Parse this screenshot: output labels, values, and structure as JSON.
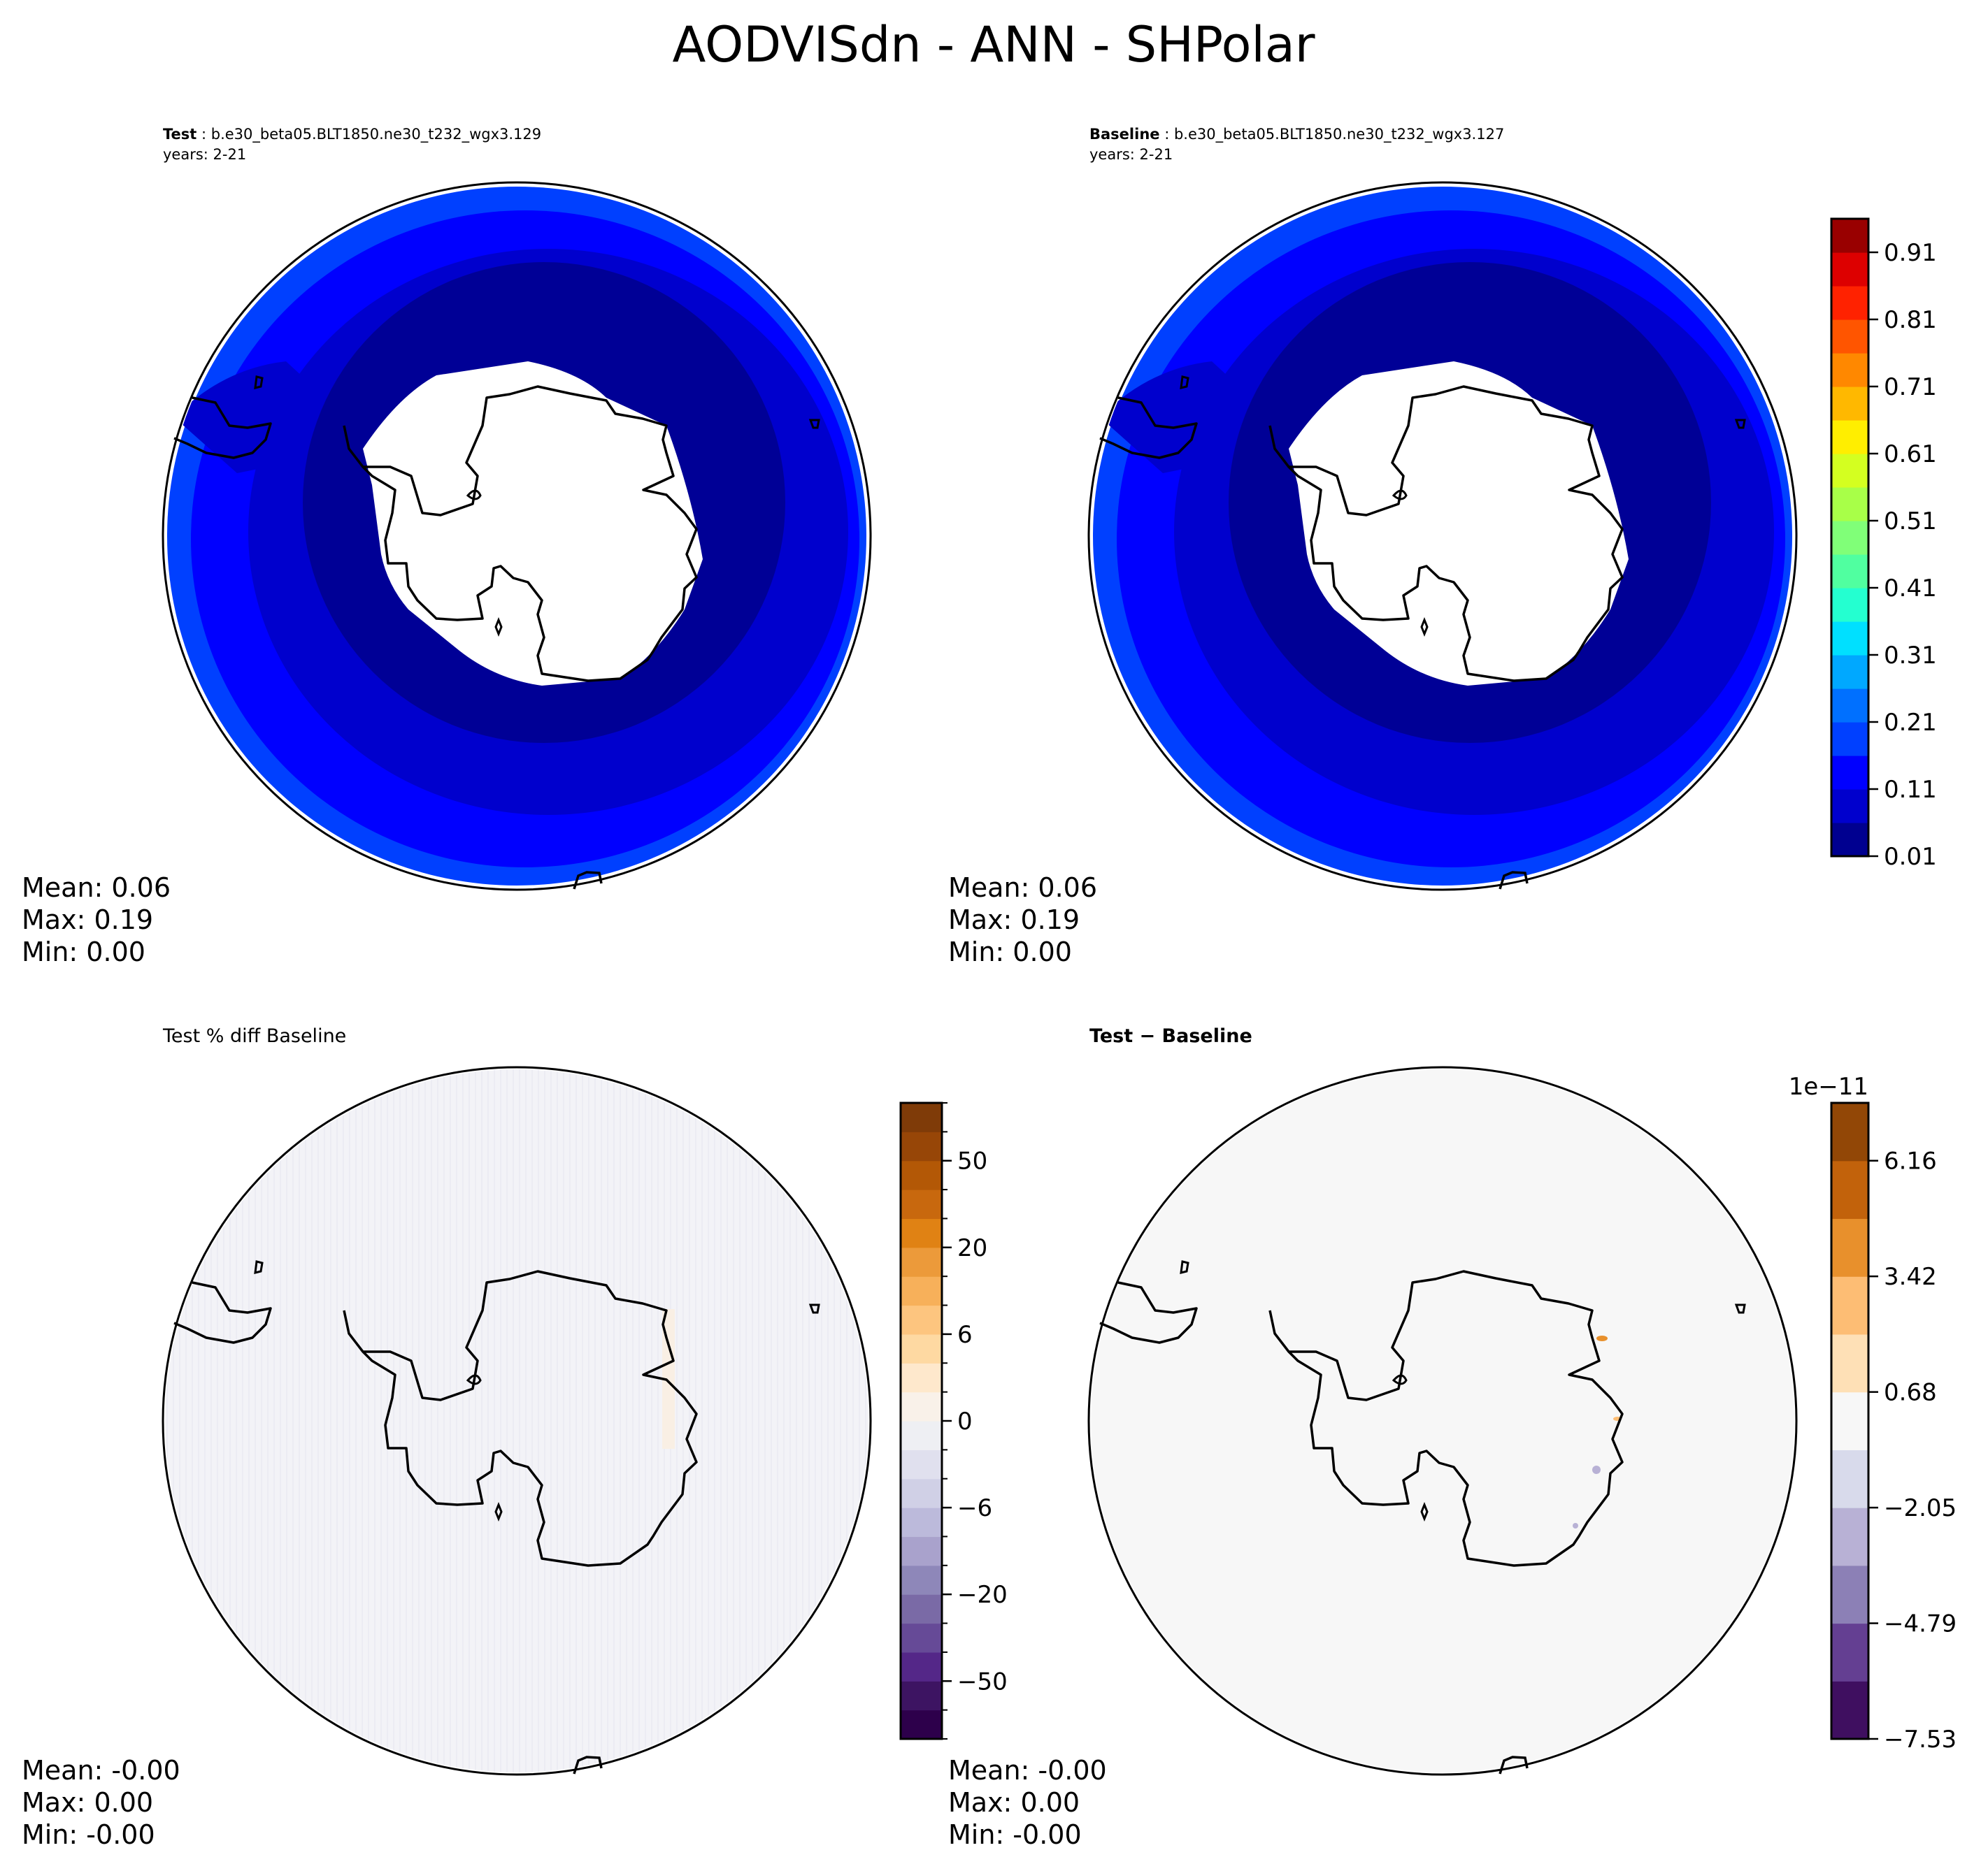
{
  "figure": {
    "title": "AODVISdn - ANN - SHPolar"
  },
  "panels": [
    {
      "id": "test",
      "title_bold": "Test",
      "title_rest": " : b.e30_beta05.BLT1850.ne30_t232_wgx3.129",
      "subtitle": "years: 2-21",
      "stats": [
        "Mean:  0.06",
        "Max:  0.19",
        "Min:  0.00"
      ]
    },
    {
      "id": "baseline",
      "title_bold": "Baseline",
      "title_rest": " : b.e30_beta05.BLT1850.ne30_t232_wgx3.127",
      "subtitle": "years: 2-21",
      "stats": [
        "Mean:  0.06",
        "Max:  0.19",
        "Min:  0.00"
      ]
    },
    {
      "id": "pct-diff",
      "title_plain": "Test % diff Baseline",
      "stats": [
        "Mean: -0.00",
        "Max:  0.00",
        "Min: -0.00"
      ]
    },
    {
      "id": "diff",
      "title_bold": "Test − Baseline",
      "stats": [
        "Mean: -0.00",
        "Max:  0.00",
        "Min: -0.00"
      ]
    }
  ],
  "chart_data": [
    {
      "type": "heatmap",
      "projection": "south-polar-stereographic",
      "panel": "test",
      "field_colors": [
        "#000096",
        "#0000cd",
        "#0000ff",
        "#0040ff"
      ],
      "field_levels": [
        "0.01-0.06",
        "0.06-0.11",
        "0.11-0.16",
        "0.16-0.21"
      ]
    },
    {
      "type": "heatmap",
      "projection": "south-polar-stereographic",
      "panel": "baseline",
      "field_colors": [
        "#000096",
        "#0000cd",
        "#0000ff",
        "#0040ff"
      ],
      "colorbar": {
        "ticks": [
          "0.01",
          "0.11",
          "0.21",
          "0.31",
          "0.41",
          "0.51",
          "0.61",
          "0.71",
          "0.81",
          "0.91"
        ],
        "tick_boundaries_from_bottom": [
          0,
          2,
          4,
          6,
          8,
          10,
          12,
          14,
          16,
          18
        ],
        "colors_bottom_to_top": [
          "#000090",
          "#0000cd",
          "#0000ff",
          "#0040ff",
          "#0070ff",
          "#00a8ff",
          "#00e0ff",
          "#24ffd0",
          "#50ffa0",
          "#80ff78",
          "#a8ff48",
          "#d4ff20",
          "#ffee00",
          "#ffb800",
          "#ff8800",
          "#ff5500",
          "#ff2200",
          "#dd0000",
          "#990000"
        ]
      }
    },
    {
      "type": "heatmap",
      "projection": "south-polar-stereographic",
      "panel": "pct-diff",
      "field_color": "#f3f3f7",
      "colorbar": {
        "ticks": [
          "−50",
          "−20",
          "−6",
          "0",
          "6",
          "20",
          "50"
        ],
        "tick_boundaries_from_bottom": [
          2,
          5,
          8,
          11,
          14,
          17,
          20
        ],
        "minor_ticks": true,
        "colors_bottom_to_top": [
          "#2d004b",
          "#3d1462",
          "#542788",
          "#664a97",
          "#7a6aa6",
          "#8e87b9",
          "#a9a2cc",
          "#bcbadb",
          "#d0d0e6",
          "#e0e0ee",
          "#eeeff3",
          "#f9f1e9",
          "#fee8cc",
          "#fed9a2",
          "#fdc57f",
          "#f7b05a",
          "#ec9a3a",
          "#e08214",
          "#c8680e",
          "#b35806",
          "#974607",
          "#7f3b08"
        ]
      }
    },
    {
      "type": "heatmap",
      "projection": "south-polar-stereographic",
      "panel": "diff",
      "field_color": "#f7f7f7",
      "colorbar": {
        "offset_label": "1e−11",
        "ticks": [
          "−7.53",
          "−4.79",
          "−2.05",
          "0.68",
          "3.42",
          "6.16"
        ],
        "tick_boundaries_from_bottom": [
          0,
          2,
          4,
          6,
          8,
          10
        ],
        "colors_bottom_to_top": [
          "#3f0f60",
          "#643f92",
          "#8c80b6",
          "#b8b1d5",
          "#d8daeb",
          "#f7f7f7",
          "#fee0b6",
          "#fdbd74",
          "#e8902c",
          "#c2620b",
          "#924706"
        ]
      }
    }
  ]
}
